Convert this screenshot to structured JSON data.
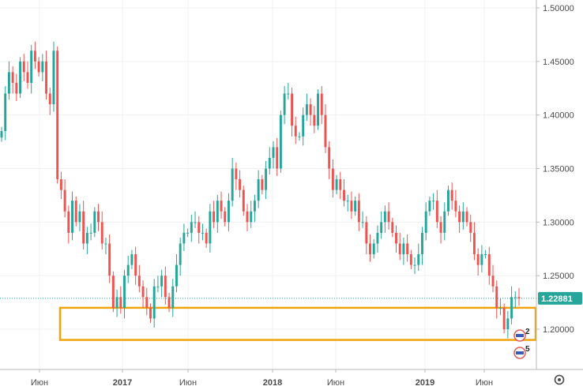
{
  "chart_data": {
    "type": "candlestick",
    "title": "",
    "y_axis": {
      "position": "right",
      "ticks": [
        "1.50000",
        "1.45000",
        "1.40000",
        "1.35000",
        "1.30000",
        "1.25000",
        "1.20000"
      ],
      "range": [
        1.15,
        1.505
      ]
    },
    "x_axis": {
      "ticks": [
        {
          "label": "Июн",
          "bold": false
        },
        {
          "label": "2017",
          "bold": true
        },
        {
          "label": "Июн",
          "bold": false
        },
        {
          "label": "2018",
          "bold": true
        },
        {
          "label": "Июн",
          "bold": false
        },
        {
          "label": "2019",
          "bold": true
        },
        {
          "label": "Июн",
          "bold": false
        }
      ]
    },
    "grid": true,
    "last_price": {
      "value": 1.22881,
      "label": "1.22881"
    },
    "highlight_zone": {
      "from": 1.19,
      "to": 1.22
    },
    "colors": {
      "up": "#26a69a",
      "down": "#ef5350",
      "zone": "#f0a30a",
      "price_tag": "#26a69a"
    },
    "event_badges": [
      {
        "text": "2"
      },
      {
        "text": "5"
      }
    ],
    "series": [
      {
        "close": [
          1.385,
          1.42,
          1.44,
          1.43,
          1.42,
          1.45,
          1.44,
          1.43,
          1.46,
          1.45,
          1.44,
          1.45,
          1.42,
          1.41,
          1.46,
          1.34,
          1.33,
          1.31,
          1.29,
          1.32,
          1.3,
          1.31,
          1.28,
          1.29,
          1.29,
          1.31,
          1.3,
          1.28,
          1.28,
          1.25,
          1.22,
          1.23,
          1.22,
          1.25,
          1.26,
          1.27,
          1.25,
          1.24,
          1.23,
          1.22,
          1.21,
          1.24,
          1.24,
          1.25,
          1.23,
          1.22,
          1.24,
          1.26,
          1.28,
          1.29,
          1.29,
          1.3,
          1.3,
          1.29,
          1.29,
          1.28,
          1.31,
          1.3,
          1.32,
          1.31,
          1.3,
          1.32,
          1.35,
          1.34,
          1.33,
          1.31,
          1.3,
          1.31,
          1.32,
          1.34,
          1.33,
          1.35,
          1.36,
          1.37,
          1.35,
          1.4,
          1.42,
          1.42,
          1.39,
          1.38,
          1.38,
          1.4,
          1.41,
          1.4,
          1.39,
          1.42,
          1.4,
          1.37,
          1.35,
          1.33,
          1.34,
          1.33,
          1.32,
          1.32,
          1.31,
          1.32,
          1.3,
          1.3,
          1.28,
          1.27,
          1.28,
          1.29,
          1.3,
          1.31,
          1.3,
          1.29,
          1.28,
          1.27,
          1.28,
          1.27,
          1.26,
          1.26,
          1.27,
          1.29,
          1.31,
          1.32,
          1.32,
          1.3,
          1.29,
          1.31,
          1.33,
          1.32,
          1.31,
          1.3,
          1.31,
          1.3,
          1.29,
          1.27,
          1.26,
          1.27,
          1.27,
          1.25,
          1.24,
          1.22,
          1.22,
          1.2,
          1.21,
          1.23,
          1.23,
          1.22881
        ]
      }
    ]
  }
}
